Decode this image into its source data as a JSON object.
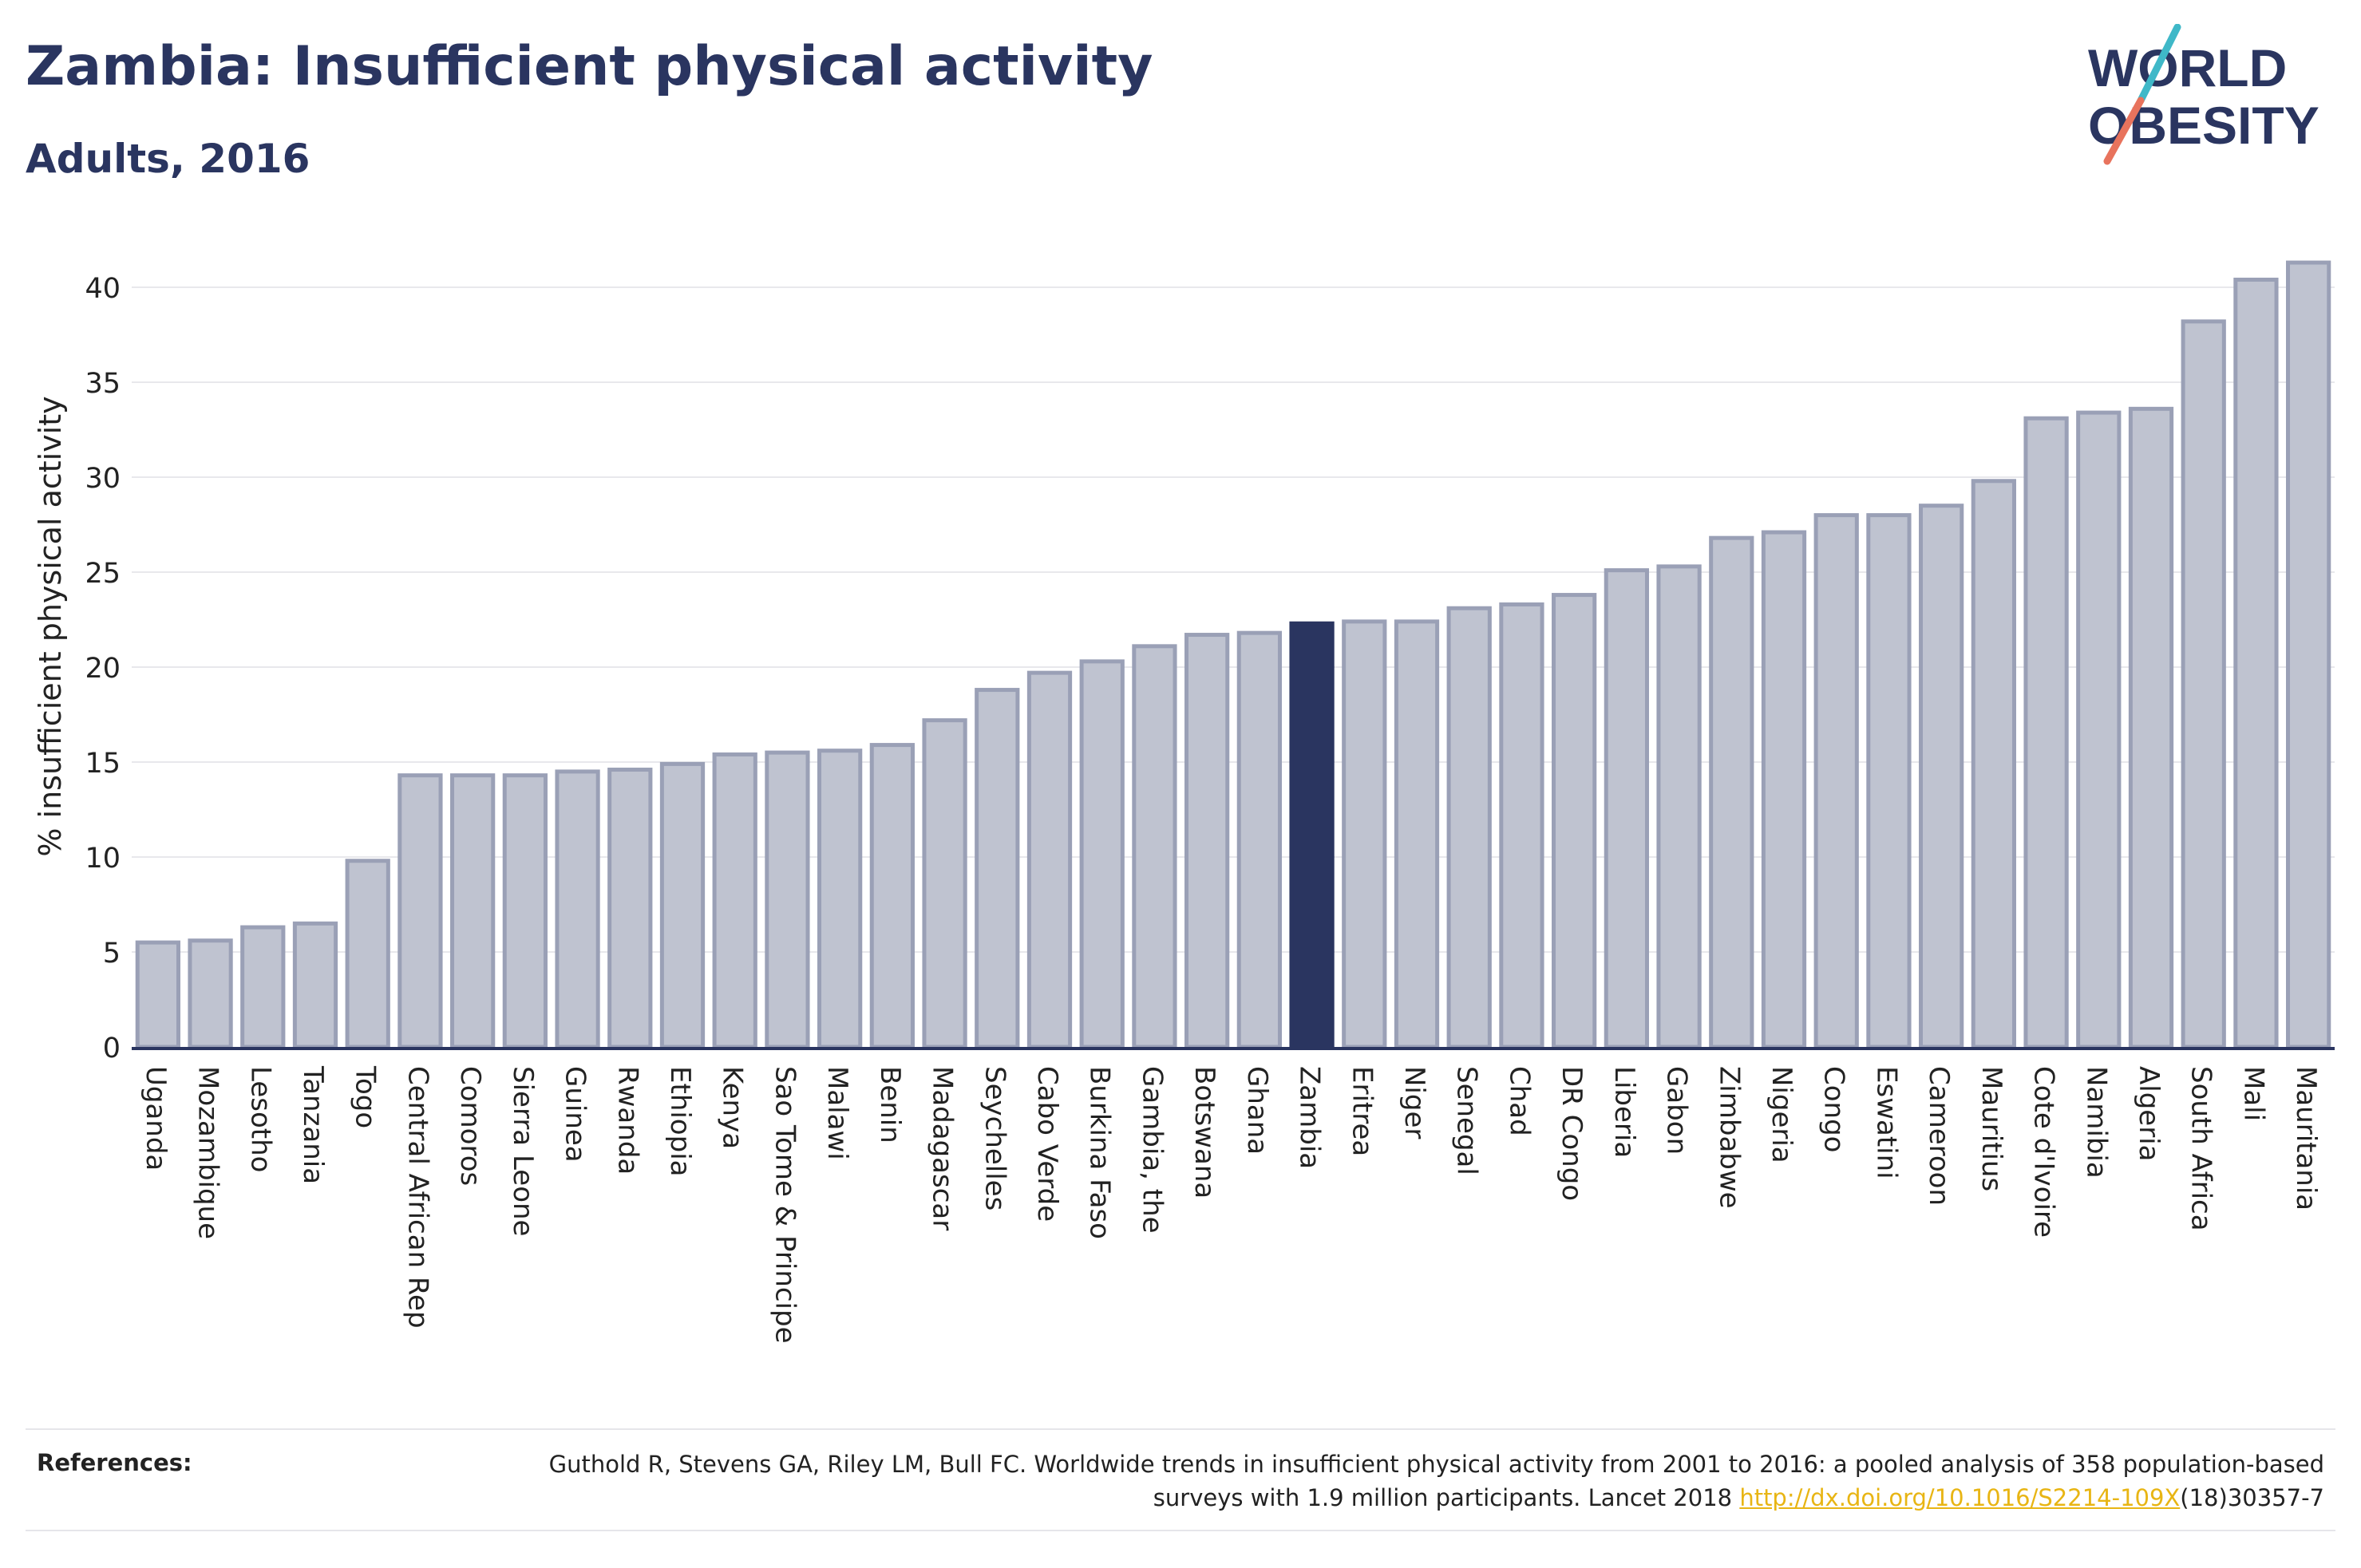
{
  "header": {
    "title": "Zambia: Insufficient physical activity",
    "subtitle": "Adults, 2016"
  },
  "logo": {
    "line1": "WORLD",
    "line2": "OBESITY",
    "colors": {
      "text": "#2a3560",
      "slash_top": "#3fb8c8",
      "slash_bottom": "#e8735d"
    }
  },
  "chart_data": {
    "type": "bar",
    "title": "Zambia: Insufficient physical activity",
    "subtitle": "Adults, 2016",
    "xlabel": "",
    "ylabel": "% insufficient physical activity",
    "ylim": [
      0,
      42
    ],
    "yticks": [
      0,
      5,
      10,
      15,
      20,
      25,
      30,
      35,
      40
    ],
    "grid": true,
    "highlight": "Zambia",
    "colors": {
      "bar": "#bfc3d0",
      "bar_border": "#9aa0b6",
      "highlight": "#2a3560",
      "grid": "#e8e8ec",
      "axis": "#2a3560"
    },
    "categories": [
      "Uganda",
      "Mozambique",
      "Lesotho",
      "Tanzania",
      "Togo",
      "Central African Rep",
      "Comoros",
      "Sierra Leone",
      "Guinea",
      "Rwanda",
      "Ethiopia",
      "Kenya",
      "Sao Tome & Principe",
      "Malawi",
      "Benin",
      "Madagascar",
      "Seychelles",
      "Cabo Verde",
      "Burkina Faso",
      "Gambia, the",
      "Botswana",
      "Ghana",
      "Zambia",
      "Eritrea",
      "Niger",
      "Senegal",
      "Chad",
      "DR Congo",
      "Liberia",
      "Gabon",
      "Zimbabwe",
      "Nigeria",
      "Congo",
      "Eswatini",
      "Cameroon",
      "Mauritius",
      "Cote d'Ivoire",
      "Namibia",
      "Algeria",
      "South Africa",
      "Mali",
      "Mauritania"
    ],
    "values": [
      5.5,
      5.6,
      6.3,
      6.5,
      9.8,
      14.3,
      14.3,
      14.3,
      14.5,
      14.6,
      14.9,
      15.4,
      15.5,
      15.6,
      15.9,
      17.2,
      18.8,
      19.7,
      20.3,
      21.1,
      21.7,
      21.8,
      22.3,
      22.4,
      22.4,
      23.1,
      23.3,
      23.8,
      25.1,
      25.3,
      26.8,
      27.1,
      28.0,
      28.0,
      28.5,
      29.8,
      33.1,
      33.4,
      33.6,
      38.2,
      40.4,
      41.3
    ]
  },
  "references": {
    "label": "References:",
    "text_before": "Guthold R, Stevens GA, Riley LM, Bull FC. Worldwide trends in insufficient physical activity from 2001 to 2016: a pooled analysis of 358 population-based surveys with 1.9 million participants. Lancet 2018 ",
    "link": "http://dx.doi.org/10.1016/S2214-109X",
    "text_after": "(18)30357-7"
  }
}
